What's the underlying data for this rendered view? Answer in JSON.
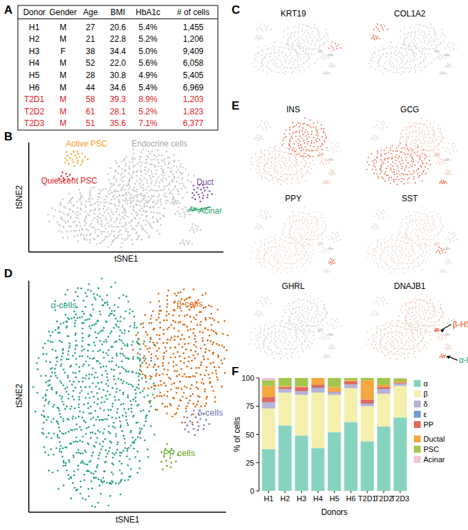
{
  "panel_labels": [
    "A",
    "B",
    "C",
    "D",
    "E",
    "F"
  ],
  "table": {
    "header": [
      "Donor",
      "Gender",
      "Age",
      "BMI",
      "HbA1c",
      "# of cells"
    ],
    "rows": [
      [
        "H1",
        "M",
        "27",
        "20.6",
        "5.4%",
        "1,455"
      ],
      [
        "H2",
        "M",
        "21",
        "22.8",
        "5.2%",
        "1,206"
      ],
      [
        "H3",
        "F",
        "38",
        "34.4",
        "5.0%",
        "9,409"
      ],
      [
        "H4",
        "M",
        "52",
        "22.0",
        "5.6%",
        "6,058"
      ],
      [
        "H5",
        "M",
        "28",
        "30.8",
        "4.9%",
        "5,405"
      ],
      [
        "H6",
        "M",
        "44",
        "34.6",
        "5.4%",
        "6,969"
      ],
      [
        "T2D1",
        "M",
        "58",
        "39.3",
        "8.9%",
        "1,203"
      ],
      [
        "T2D2",
        "M",
        "61",
        "28.1",
        "5.2%",
        "1,823"
      ],
      [
        "T2D3",
        "M",
        "51",
        "35.6",
        "7.1%",
        "6,377"
      ]
    ],
    "colors": [
      "#000000",
      "#000000",
      "#000000",
      "#000000",
      "#000000",
      "#000000",
      "#e3161b",
      "#e3161b",
      "#e3161b"
    ]
  },
  "tsne_b": {
    "x_label": "tSNE1",
    "y_label": "tSNE2",
    "labels": [
      {
        "text": "Active PSC",
        "color": "#f5a020"
      },
      {
        "text": "Quiescent PSC",
        "color": "#e3161b"
      },
      {
        "text": "Endocrine cells",
        "color": "#a8a8a8"
      },
      {
        "text": "Duct",
        "color": "#7b3fa0"
      },
      {
        "text": "Acinar",
        "color": "#2fa36b"
      }
    ]
  },
  "tsne_d": {
    "x_label": "tSNE1",
    "y_label": "tSNE2",
    "labels": [
      {
        "text": "α-cells",
        "color": "#1b9e77"
      },
      {
        "text": "β-cells",
        "color": "#d95f02"
      },
      {
        "text": "δ-cells",
        "color": "#7570b3"
      },
      {
        "text": "PP cells",
        "color": "#66a61e"
      }
    ]
  },
  "feature_plots": [
    {
      "title": "KRT19"
    },
    {
      "title": "COL1A2"
    },
    {
      "title": "INS"
    },
    {
      "title": "GCG"
    },
    {
      "title": "PPY"
    },
    {
      "title": "SST"
    },
    {
      "title": "GHRL"
    },
    {
      "title": "DNAJB1",
      "annotations": [
        {
          "text": "β-HS",
          "color": "#e8502a"
        },
        {
          "text": "α-HS",
          "color": "#2aa089"
        }
      ]
    }
  ],
  "chart_data": {
    "type": "bar",
    "stacked": true,
    "x_label": "Donors",
    "y_label": "% of cells",
    "categories": [
      "H1",
      "H2",
      "H3",
      "H4",
      "H5",
      "H6",
      "T2D1",
      "T2D2",
      "T2D3"
    ],
    "ylim": [
      0,
      100
    ],
    "yticks": [
      0,
      25,
      50,
      75,
      100
    ],
    "legend": "right",
    "series": [
      {
        "name": "α",
        "color": "#86d4c0",
        "values": [
          37,
          58,
          49,
          38,
          52,
          61,
          44,
          57,
          65
        ]
      },
      {
        "name": "β",
        "color": "#f4f0ac",
        "values": [
          36,
          29,
          36,
          49,
          33,
          30,
          31,
          29,
          28
        ]
      },
      {
        "name": "δ",
        "color": "#b7b3d6",
        "values": [
          5,
          3,
          3,
          4,
          2,
          3,
          2,
          4,
          2
        ]
      },
      {
        "name": "ε",
        "color": "#6f9fcf",
        "values": [
          0.5,
          0.3,
          0.3,
          0.5,
          0.3,
          0.3,
          0.5,
          0.3,
          0.2
        ]
      },
      {
        "name": "PP",
        "color": "#e06a60",
        "values": [
          4.5,
          1.7,
          3.7,
          2.5,
          0.7,
          2.7,
          3.5,
          1.7,
          0.8
        ]
      },
      {
        "name": "Ductal",
        "color": "#f5a742",
        "values": [
          10,
          1,
          0.5,
          6,
          4,
          1,
          17,
          2,
          1
        ]
      },
      {
        "name": "PSC",
        "color": "#a3c64e",
        "values": [
          5,
          7,
          7.5,
          0,
          8,
          2,
          2,
          6,
          2.5
        ]
      },
      {
        "name": "Acinar",
        "color": "#f2c4d4",
        "values": [
          2,
          0,
          0,
          0,
          0,
          0,
          0,
          0,
          0.5
        ]
      }
    ]
  }
}
